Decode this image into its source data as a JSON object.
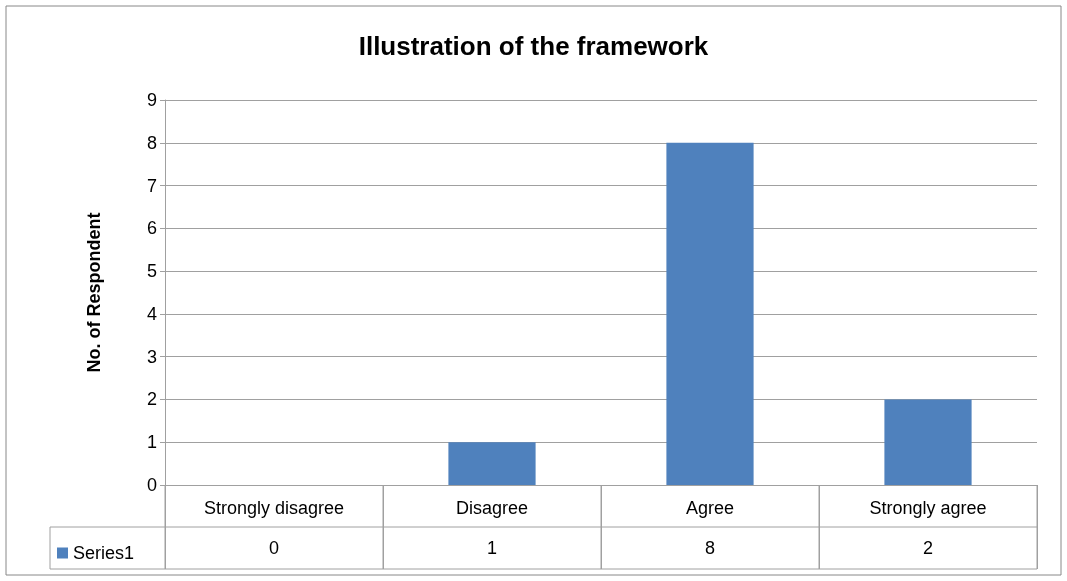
{
  "chart_data": {
    "type": "bar",
    "title": "Illustration of the framework",
    "ylabel": "No. of Respondent",
    "categories": [
      "Strongly disagree",
      "Disagree",
      "Agree",
      "Strongly agree"
    ],
    "series": [
      {
        "name": "Series1",
        "color": "#4f81bd",
        "values": [
          0,
          1,
          8,
          2
        ]
      }
    ],
    "ylim": [
      0,
      9
    ],
    "yticks": [
      0,
      1,
      2,
      3,
      4,
      5,
      6,
      7,
      8,
      9
    ],
    "grid": "y",
    "legend": "bottom",
    "data_labels": true
  }
}
